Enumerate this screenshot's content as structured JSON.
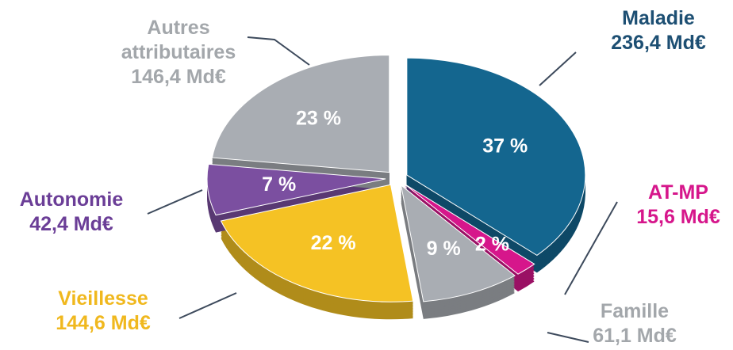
{
  "chart_data": {
    "type": "pie",
    "categories": [
      "Maladie",
      "AT-MP",
      "Famille",
      "Vieillesse",
      "Autonomie",
      "Autres attributaires"
    ],
    "sublabels": [
      "236,4 Md€",
      "15,6 Md€",
      "61,1 Md€",
      "144,6 Md€",
      "42,4 Md€",
      "146,4 Md€"
    ],
    "values": [
      37,
      2,
      9,
      22,
      7,
      23
    ],
    "value_labels": [
      "37 %",
      "2 %",
      "9 %",
      "22 %",
      "7 %",
      "23 %"
    ],
    "colors": [
      "#14668f",
      "#d6168b",
      "#a9adb3",
      "#f5c224",
      "#7b4fa0",
      "#a9adb3"
    ],
    "label_colors": [
      "#1d4f73",
      "#d6168b",
      "#a3a7ab",
      "#f0b81e",
      "#6b3e97",
      "#a3a7ab"
    ]
  }
}
